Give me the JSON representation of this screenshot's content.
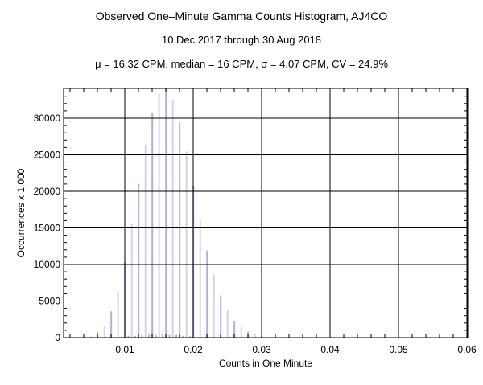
{
  "chart_data": {
    "type": "bar",
    "title": "Observed One–Minute Gamma Counts Histogram, AJ4CO",
    "subtitle": "10 Dec 2017 through 30 Aug 2018",
    "stats_line": "μ = 16.32 CPM,   median = 16 CPM,   σ = 4.07 CPM,   CV = 24.9%",
    "xlabel": "Counts in One Minute",
    "ylabel": "Occurrences x 1,000",
    "xlim": [
      0.0011,
      0.06
    ],
    "ylim": [
      0,
      34000
    ],
    "xticks": [
      "0.01",
      "0.02",
      "0.03",
      "0.04",
      "0.05",
      "0.06"
    ],
    "yticks": [
      "0",
      "5000",
      "10000",
      "15000",
      "20000",
      "25000",
      "30000"
    ],
    "grid": true,
    "series": [
      {
        "name": "main",
        "x": [
          0.005,
          0.006,
          0.007,
          0.008,
          0.009,
          0.01,
          0.011,
          0.012,
          0.013,
          0.014,
          0.015,
          0.016,
          0.017,
          0.018,
          0.019,
          0.02,
          0.021,
          0.022,
          0.023,
          0.024,
          0.025,
          0.026,
          0.027,
          0.028,
          0.029,
          0.03
        ],
        "values": [
          180,
          730,
          1650,
          3600,
          6300,
          10330,
          15500,
          21000,
          26270,
          30660,
          33400,
          34000,
          32420,
          29450,
          25460,
          20800,
          16000,
          11900,
          8650,
          5790,
          3770,
          2300,
          1430,
          840,
          440,
          180
        ]
      },
      {
        "name": "minor",
        "x": [
          0.0095,
          0.0105,
          0.0115,
          0.0125,
          0.0135,
          0.0145,
          0.0155,
          0.0165,
          0.0175,
          0.0185,
          0.0195
        ],
        "values": [
          150,
          250,
          250,
          350,
          400,
          350,
          450,
          350,
          350,
          250,
          200
        ]
      }
    ],
    "colors": {
      "bar_a": "#aab3dc",
      "bar_b": "#d3d6e2",
      "grid": "#000000"
    }
  }
}
